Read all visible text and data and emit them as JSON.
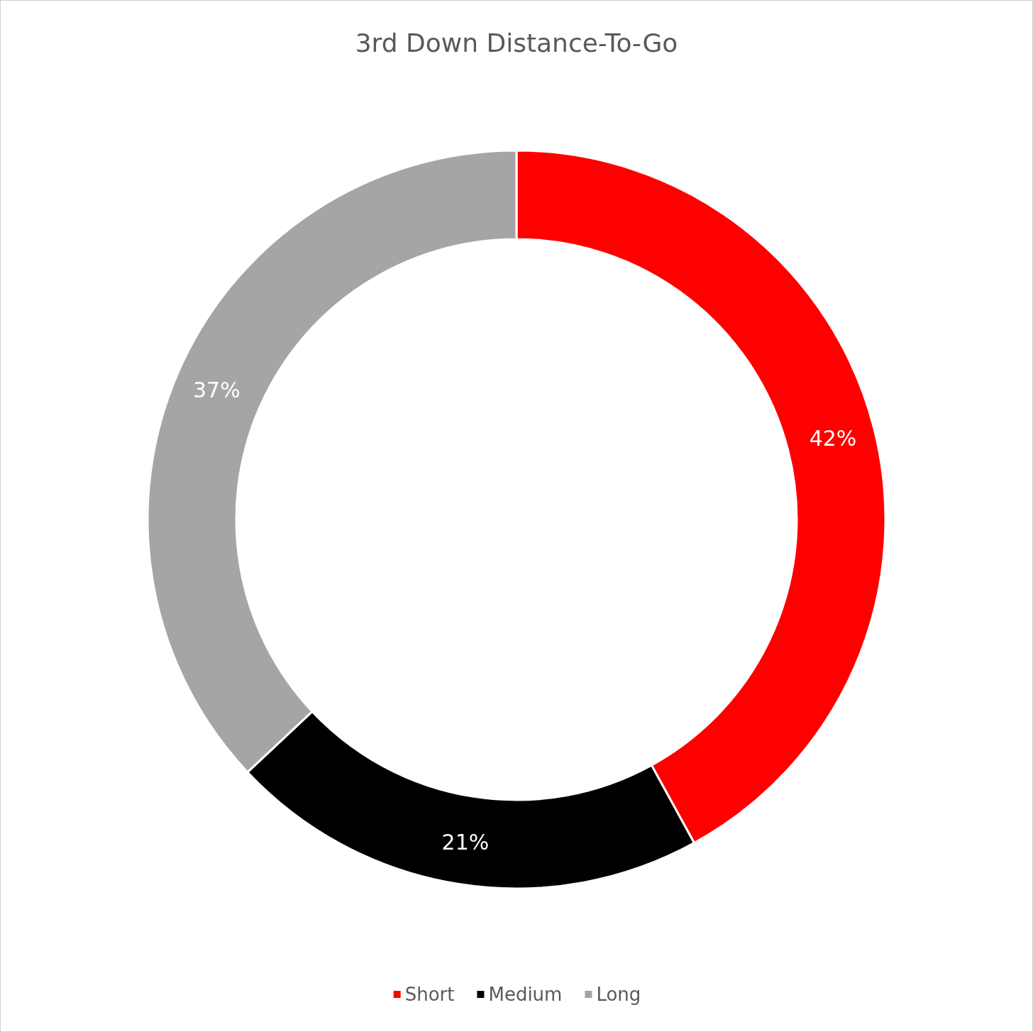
{
  "chart_data": {
    "type": "donut",
    "title": "3rd Down Distance-To-Go",
    "categories": [
      "Short",
      "Medium",
      "Long"
    ],
    "values": [
      42,
      21,
      37
    ],
    "value_labels": [
      "42%",
      "21%",
      "37%"
    ],
    "colors": [
      "#ff0000",
      "#000000",
      "#a5a5a5"
    ],
    "legend": "bottom"
  }
}
